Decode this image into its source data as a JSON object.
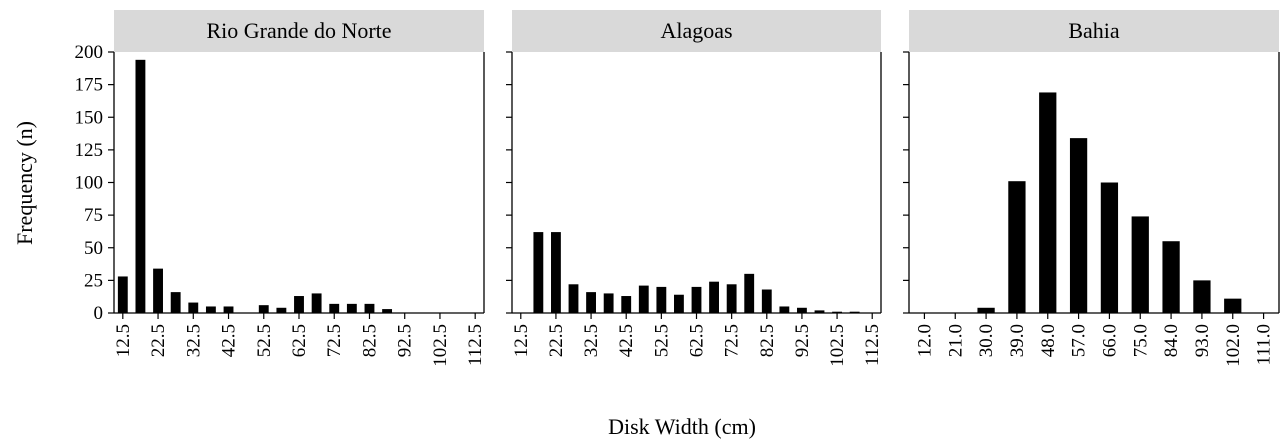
{
  "chart_data": {
    "type": "bar",
    "xlabel": "Disk Width (cm)",
    "ylabel": "Frequency (n)",
    "ylim": [
      0,
      200
    ],
    "yticks": [
      "0",
      "25",
      "50",
      "75",
      "100",
      "125",
      "150",
      "175",
      "200"
    ],
    "grid": false,
    "colors": {
      "bar": "#000000",
      "strip": "#d9d9d9",
      "axis": "#000000"
    },
    "panels": [
      {
        "title": "Rio Grande do Norte",
        "x_min": 10,
        "x_max": 115,
        "bin_width": 5,
        "bins": [
          12.5,
          17.5,
          22.5,
          27.5,
          32.5,
          37.5,
          42.5,
          47.5,
          52.5,
          57.5,
          62.5,
          67.5,
          72.5,
          77.5,
          82.5,
          87.5,
          92.5,
          97.5,
          102.5,
          107.5,
          112.5
        ],
        "values": [
          28,
          194,
          34,
          16,
          8,
          5,
          5,
          0,
          6,
          4,
          13,
          15,
          7,
          7,
          7,
          3,
          0,
          0,
          0,
          0,
          0
        ],
        "tick_labels": [
          "12.5",
          "22.5",
          "32.5",
          "42.5",
          "52.5",
          "62.5",
          "72.5",
          "82.5",
          "92.5",
          "102.5",
          "112.5"
        ]
      },
      {
        "title": "Alagoas",
        "x_min": 10,
        "x_max": 115,
        "bin_width": 5,
        "bins": [
          17.5,
          22.5,
          27.5,
          32.5,
          37.5,
          42.5,
          47.5,
          52.5,
          57.5,
          62.5,
          67.5,
          72.5,
          77.5,
          82.5,
          87.5,
          92.5,
          97.5,
          102.5,
          107.5
        ],
        "values": [
          62,
          62,
          22,
          16,
          15,
          13,
          21,
          20,
          14,
          20,
          24,
          22,
          30,
          18,
          5,
          4,
          2,
          1,
          1
        ],
        "tick_labels": [
          "12.5",
          "22.5",
          "32.5",
          "42.5",
          "52.5",
          "62.5",
          "72.5",
          "82.5",
          "92.5",
          "102.5",
          "112.5"
        ]
      },
      {
        "title": "Bahia",
        "x_min": 7.5,
        "x_max": 115.5,
        "bin_width": 9,
        "bins": [
          12.0,
          21.0,
          30.0,
          39.0,
          48.0,
          57.0,
          66.0,
          75.0,
          84.0,
          93.0,
          102.0,
          111.0
        ],
        "values": [
          0,
          0,
          4,
          101,
          169,
          134,
          100,
          74,
          55,
          25,
          11,
          0
        ],
        "tick_labels": [
          "12.0",
          "21.0",
          "30.0",
          "39.0",
          "48.0",
          "57.0",
          "66.0",
          "75.0",
          "84.0",
          "93.0",
          "102.0",
          "111.0"
        ]
      }
    ]
  }
}
